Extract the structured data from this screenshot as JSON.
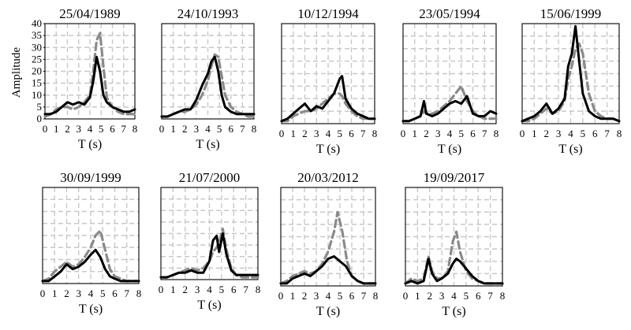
{
  "figure": {
    "y_axis_label": "Amplitude",
    "x_axis_label": "T (s)",
    "colors": {
      "solid": "#000000",
      "dashed": "#8a8a8a",
      "grid": "#c8c8c8"
    }
  },
  "chart_data": [
    {
      "type": "line",
      "title": "25/04/1989",
      "xlabel": "T (s)",
      "ylabel": "Amplitude",
      "xlim": [
        0,
        8
      ],
      "ylim": [
        0,
        40
      ],
      "x_ticks": [
        0,
        1,
        2,
        3,
        4,
        5,
        6,
        7,
        8
      ],
      "y_ticks": [
        0,
        5,
        10,
        15,
        20,
        25,
        30,
        35,
        40
      ],
      "grid": true,
      "series": [
        {
          "style": "solid",
          "x": [
            0,
            0.5,
            1,
            1.5,
            2,
            2.5,
            3,
            3.5,
            4,
            4.3,
            4.6,
            4.9,
            5.2,
            5.5,
            6,
            6.5,
            7,
            7.5,
            8
          ],
          "values": [
            2,
            2,
            3,
            5,
            7,
            6,
            7,
            6,
            9,
            16,
            26,
            20,
            10,
            7,
            5,
            4,
            3,
            3,
            4
          ]
        },
        {
          "style": "dashed",
          "x": [
            0,
            0.5,
            1,
            1.5,
            2,
            2.5,
            3,
            3.5,
            4,
            4.3,
            4.6,
            4.9,
            5.2,
            5.5,
            6,
            6.5,
            7,
            7.5,
            8
          ],
          "values": [
            1,
            2,
            4,
            5,
            5,
            4,
            5,
            7,
            10,
            20,
            33,
            36,
            22,
            9,
            5,
            3,
            2,
            2,
            2
          ]
        }
      ]
    },
    {
      "type": "line",
      "title": "24/10/1993",
      "xlabel": "T (s)",
      "xlim": [
        0,
        8
      ],
      "ylim": [
        0,
        40
      ],
      "x_ticks": [
        0,
        1,
        2,
        3,
        4,
        5,
        6,
        7,
        8
      ],
      "grid": true,
      "series": [
        {
          "style": "solid",
          "x": [
            0,
            0.5,
            1,
            1.5,
            2,
            2.5,
            3,
            3.5,
            4,
            4.3,
            4.6,
            4.9,
            5.2,
            5.5,
            6,
            6.5,
            7,
            7.5,
            8
          ],
          "values": [
            1,
            1,
            2,
            3,
            4,
            4,
            8,
            14,
            19,
            24,
            26,
            20,
            10,
            5,
            3,
            2,
            2,
            2,
            2
          ]
        },
        {
          "style": "dashed",
          "x": [
            0,
            0.5,
            1,
            1.5,
            2,
            2.5,
            3,
            3.5,
            4,
            4.3,
            4.6,
            4.9,
            5.2,
            5.5,
            6,
            6.5,
            7,
            7.5,
            8
          ],
          "values": [
            1,
            1,
            2,
            3,
            3,
            4,
            6,
            10,
            16,
            22,
            27,
            26,
            18,
            10,
            5,
            3,
            2,
            1,
            1
          ]
        }
      ]
    },
    {
      "type": "line",
      "title": "10/12/1994",
      "xlabel": "T (s)",
      "xlim": [
        0,
        8
      ],
      "ylim": [
        0,
        40
      ],
      "x_ticks": [
        0,
        1,
        2,
        3,
        4,
        5,
        6,
        7,
        8
      ],
      "grid": true,
      "series": [
        {
          "style": "solid",
          "x": [
            0,
            0.5,
            1,
            1.5,
            2,
            2.5,
            3,
            3.5,
            4,
            4.5,
            5,
            5.2,
            5.5,
            6,
            6.5,
            7,
            7.5,
            8
          ],
          "values": [
            1,
            2,
            4,
            6,
            8,
            5,
            7,
            6,
            9,
            12,
            18,
            19,
            10,
            6,
            4,
            3,
            2,
            2
          ]
        },
        {
          "style": "dashed",
          "x": [
            0,
            0.5,
            1,
            1.5,
            2,
            2.5,
            3,
            3.5,
            4,
            4.5,
            5,
            5.2,
            5.5,
            6,
            6.5,
            7,
            7.5,
            8
          ],
          "values": [
            1,
            1,
            3,
            4,
            5,
            5,
            6,
            8,
            10,
            12,
            12,
            11,
            8,
            5,
            3,
            2,
            2,
            2
          ]
        }
      ]
    },
    {
      "type": "line",
      "title": "23/05/1994",
      "xlabel": "T (s)",
      "xlim": [
        0,
        8
      ],
      "ylim": [
        0,
        40
      ],
      "x_ticks": [
        0,
        1,
        2,
        3,
        4,
        5,
        6,
        7,
        8
      ],
      "grid": true,
      "series": [
        {
          "style": "solid",
          "x": [
            0,
            0.5,
            1,
            1.5,
            1.8,
            2,
            2.5,
            3,
            3.5,
            4,
            4.5,
            5,
            5.5,
            6,
            6.5,
            7,
            7.5,
            8
          ],
          "values": [
            1,
            1,
            2,
            3,
            9,
            4,
            3,
            4,
            6,
            8,
            9,
            8,
            11,
            4,
            3,
            3,
            5,
            4
          ]
        },
        {
          "style": "dashed",
          "x": [
            0,
            0.5,
            1,
            1.5,
            1.8,
            2,
            2.5,
            3,
            3.5,
            4,
            4.5,
            5,
            5.5,
            6,
            6.5,
            7,
            7.5,
            8
          ],
          "values": [
            1,
            1,
            2,
            3,
            5,
            4,
            4,
            5,
            7,
            9,
            12,
            15,
            9,
            5,
            3,
            2,
            2,
            2
          ]
        }
      ]
    },
    {
      "type": "line",
      "title": "15/06/1999",
      "xlabel": "T (s)",
      "xlim": [
        0,
        8
      ],
      "ylim": [
        0,
        40
      ],
      "x_ticks": [
        0,
        1,
        2,
        3,
        4,
        5,
        6,
        7,
        8
      ],
      "grid": true,
      "series": [
        {
          "style": "solid",
          "x": [
            0,
            0.5,
            1,
            1.5,
            2,
            2.5,
            3,
            3.5,
            3.8,
            4.1,
            4.4,
            4.7,
            5,
            5.5,
            6,
            6.5,
            7,
            7.5,
            8
          ],
          "values": [
            1,
            2,
            3,
            5,
            8,
            4,
            6,
            10,
            23,
            28,
            39,
            25,
            12,
            5,
            3,
            2,
            2,
            2,
            1
          ]
        },
        {
          "style": "dashed",
          "x": [
            0,
            0.5,
            1,
            1.5,
            2,
            2.5,
            3,
            3.5,
            3.8,
            4.1,
            4.4,
            4.7,
            5,
            5.5,
            6,
            6.5,
            7,
            7.5,
            8
          ],
          "values": [
            1,
            1,
            2,
            4,
            6,
            4,
            5,
            9,
            18,
            23,
            30,
            32,
            28,
            12,
            5,
            3,
            2,
            2,
            1
          ]
        }
      ]
    },
    {
      "type": "line",
      "title": "30/09/1999",
      "xlabel": "T (s)",
      "xlim": [
        0,
        8
      ],
      "ylim": [
        0,
        40
      ],
      "x_ticks": [
        0,
        1,
        2,
        3,
        4,
        5,
        6,
        7,
        8
      ],
      "grid": true,
      "series": [
        {
          "style": "solid",
          "x": [
            0,
            0.5,
            1,
            1.5,
            2,
            2.5,
            3,
            3.5,
            4,
            4.4,
            4.8,
            5.2,
            5.6,
            6,
            6.5,
            7,
            7.5,
            8
          ],
          "values": [
            1,
            1,
            3,
            5,
            8,
            6,
            7,
            9,
            12,
            14,
            11,
            6,
            3,
            2,
            1,
            1,
            1,
            1
          ]
        },
        {
          "style": "dashed",
          "x": [
            0,
            0.5,
            1,
            1.5,
            2,
            2.5,
            3,
            3.5,
            4,
            4.4,
            4.8,
            5.2,
            5.6,
            6,
            6.5,
            7,
            7.5,
            8
          ],
          "values": [
            1,
            2,
            5,
            7,
            9,
            7,
            8,
            11,
            15,
            20,
            22,
            14,
            6,
            3,
            2,
            1,
            1,
            1
          ]
        }
      ]
    },
    {
      "type": "line",
      "title": "21/07/2000",
      "xlabel": "T (s)",
      "xlim": [
        0,
        8
      ],
      "ylim": [
        0,
        40
      ],
      "x_ticks": [
        0,
        1,
        2,
        3,
        4,
        5,
        6,
        7,
        8
      ],
      "grid": true,
      "series": [
        {
          "style": "solid",
          "x": [
            0,
            0.5,
            1,
            1.5,
            2,
            2.5,
            3,
            3.5,
            4,
            4.3,
            4.6,
            4.8,
            5.1,
            5.4,
            5.8,
            6.2,
            6.7,
            7.2,
            8
          ],
          "values": [
            1,
            1,
            2,
            3,
            3,
            4,
            3,
            3,
            8,
            17,
            19,
            12,
            20,
            11,
            4,
            2,
            2,
            2,
            2
          ]
        },
        {
          "style": "dashed",
          "x": [
            0,
            0.5,
            1,
            1.5,
            2,
            2.5,
            3,
            3.5,
            4,
            4.3,
            4.6,
            4.8,
            5.1,
            5.4,
            5.8,
            6.2,
            6.7,
            7.2,
            8
          ],
          "values": [
            1,
            1,
            2,
            3,
            4,
            5,
            4,
            5,
            8,
            12,
            14,
            16,
            22,
            13,
            5,
            2,
            1,
            1,
            1
          ]
        }
      ]
    },
    {
      "type": "line",
      "title": "20/03/2012",
      "xlabel": "T (s)",
      "xlim": [
        0,
        8
      ],
      "ylim": [
        0,
        40
      ],
      "x_ticks": [
        0,
        1,
        2,
        3,
        4,
        5,
        6,
        7,
        8
      ],
      "grid": true,
      "series": [
        {
          "style": "solid",
          "x": [
            0,
            0.5,
            1,
            1.5,
            2,
            2.5,
            3,
            3.5,
            4,
            4.5,
            5,
            5.5,
            6,
            6.5,
            7,
            7.5,
            8
          ],
          "values": [
            1,
            1,
            3,
            4,
            5,
            4,
            6,
            8,
            11,
            12,
            10,
            8,
            4,
            2,
            1,
            1,
            1
          ]
        },
        {
          "style": "dashed",
          "x": [
            0,
            0.5,
            1,
            1.5,
            2,
            2.5,
            3,
            3.5,
            4,
            4.5,
            4.8,
            5.2,
            5.6,
            6,
            6.5,
            7,
            7.5,
            8
          ],
          "values": [
            1,
            2,
            4,
            5,
            6,
            5,
            6,
            9,
            14,
            22,
            30,
            22,
            10,
            4,
            2,
            1,
            1,
            1
          ]
        }
      ]
    },
    {
      "type": "line",
      "title": "19/09/2017",
      "xlabel": "T (s)",
      "xlim": [
        0,
        8
      ],
      "ylim": [
        0,
        40
      ],
      "x_ticks": [
        0,
        1,
        2,
        3,
        4,
        5,
        6,
        7,
        8
      ],
      "grid": true,
      "series": [
        {
          "style": "solid",
          "x": [
            0,
            0.5,
            1,
            1.5,
            1.9,
            2.2,
            2.6,
            3,
            3.5,
            3.9,
            4.2,
            4.5,
            5,
            5.5,
            6,
            6.5,
            7,
            7.5,
            8
          ],
          "values": [
            1,
            2,
            1,
            2,
            11,
            5,
            2,
            3,
            5,
            9,
            11,
            10,
            7,
            4,
            2,
            1,
            1,
            1,
            1
          ]
        },
        {
          "style": "dashed",
          "x": [
            0,
            0.5,
            1,
            1.5,
            1.9,
            2.2,
            2.6,
            3,
            3.5,
            3.9,
            4.2,
            4.5,
            5,
            5.5,
            6,
            6.5,
            7,
            7.5,
            8
          ],
          "values": [
            1,
            3,
            2,
            3,
            12,
            6,
            3,
            3,
            6,
            18,
            22,
            14,
            6,
            3,
            2,
            1,
            1,
            1,
            1
          ]
        }
      ]
    }
  ]
}
